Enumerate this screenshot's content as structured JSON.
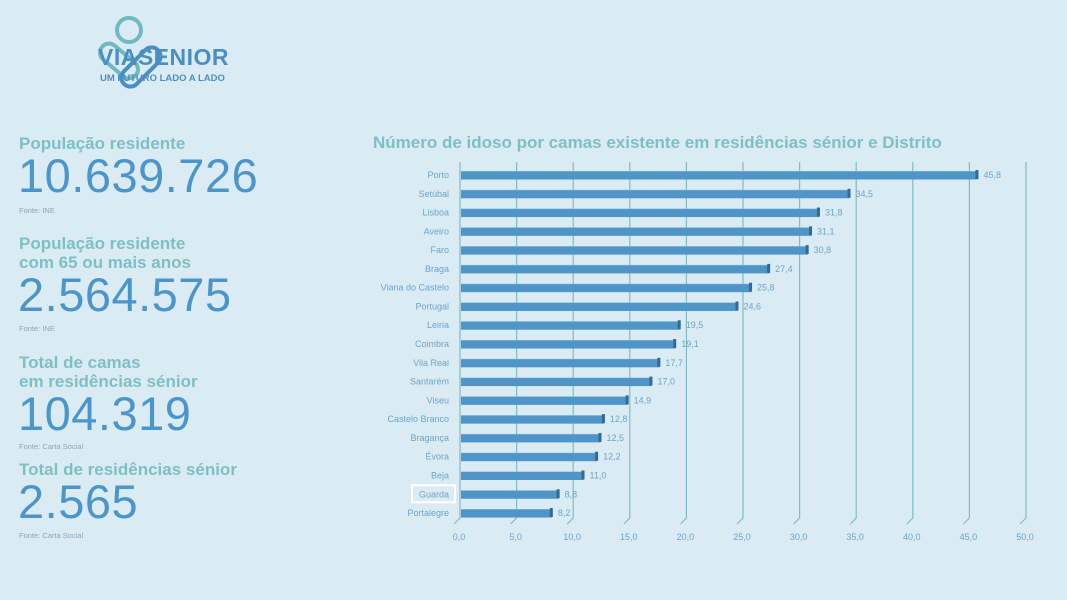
{
  "brand": {
    "name": "VIASENIOR",
    "tagline": "UM FUTURO LADO A LADO"
  },
  "stats": [
    {
      "label_lines": [
        "População residente"
      ],
      "value": "10.639.726",
      "source": "Fonte: INE"
    },
    {
      "label_lines": [
        "População residente",
        "com 65 ou mais anos"
      ],
      "value": "2.564.575",
      "source": "Fonte: INE"
    },
    {
      "label_lines": [
        "Total de camas",
        "em residências sénior"
      ],
      "value": "104.319",
      "source": "Fonte: Carta Social"
    },
    {
      "label_lines": [
        "Total de residências sénior"
      ],
      "value": "2.565",
      "source": "Fonte: Carta Social"
    }
  ],
  "colors": {
    "bar": "#4f95c8",
    "bar_edge": "#2f6a99",
    "grid": "#7fbcc4",
    "text": "#6aa4cc",
    "highlight_box": "#ffffff"
  },
  "chart_data": {
    "type": "bar",
    "orientation": "horizontal",
    "title": "Número de idoso por camas existente em residências sénior e Distrito",
    "categories": [
      "Porto",
      "Setúbal",
      "Lisboa",
      "Aveiro",
      "Faro",
      "Braga",
      "Viana do Castelo",
      "Portugal",
      "Leiria",
      "Coimbra",
      "Vila Real",
      "Santarém",
      "Viseu",
      "Castelo Branco",
      "Bragança",
      "Évora",
      "Beja",
      "Guarda",
      "Portalegre"
    ],
    "values": [
      45.8,
      34.5,
      31.8,
      31.1,
      30.8,
      27.4,
      25.8,
      24.6,
      19.5,
      19.1,
      17.7,
      17.0,
      14.9,
      12.8,
      12.5,
      12.2,
      11.0,
      8.8,
      8.2
    ],
    "value_labels": [
      "45,8",
      "34,5",
      "31,8",
      "31,1",
      "30,8",
      "27,4",
      "25,8",
      "24,6",
      "19,5",
      "19,1",
      "17,7",
      "17,0",
      "14,9",
      "12,8",
      "12,5",
      "12,2",
      "11,0",
      "8,8",
      "8,2"
    ],
    "xlim": [
      0,
      50
    ],
    "x_ticks": [
      "0,0",
      "5,0",
      "10,0",
      "15,0",
      "20,0",
      "25,0",
      "30,0",
      "35,0",
      "40,0",
      "45,0",
      "50,0"
    ],
    "grid": true,
    "highlighted_category": "Guarda"
  }
}
